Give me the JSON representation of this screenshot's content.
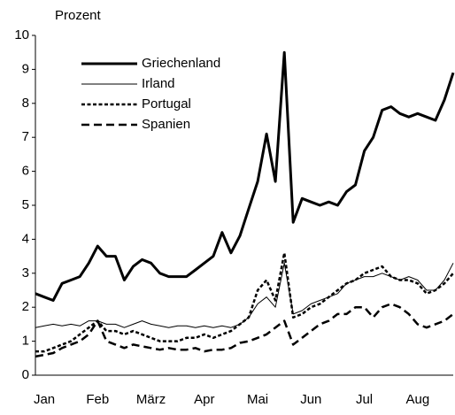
{
  "chart_data": {
    "type": "line",
    "y_label": "Prozent",
    "categories": [
      null,
      "Jan",
      null,
      null,
      null,
      null,
      null,
      "Feb",
      null,
      null,
      null,
      null,
      null,
      "März",
      null,
      null,
      null,
      null,
      null,
      "Apr",
      null,
      null,
      null,
      null,
      null,
      "Mai",
      null,
      null,
      null,
      null,
      null,
      "Jun",
      null,
      null,
      null,
      null,
      null,
      "Jul",
      null,
      null,
      null,
      null,
      null,
      "Aug",
      null,
      null,
      null,
      null
    ],
    "series": [
      {
        "name": "Griechenland",
        "color": "#000000",
        "line_width": 3,
        "dash": "none",
        "values": [
          2.4,
          2.3,
          2.2,
          2.7,
          2.8,
          2.9,
          3.3,
          3.8,
          3.5,
          3.5,
          2.8,
          3.2,
          3.4,
          3.3,
          3.0,
          2.9,
          2.9,
          2.9,
          3.1,
          3.3,
          3.5,
          4.2,
          3.6,
          4.1,
          4.9,
          5.7,
          7.1,
          5.7,
          9.5,
          4.5,
          5.2,
          5.1,
          5.0,
          5.1,
          5.0,
          5.4,
          5.6,
          6.6,
          7.0,
          7.8,
          7.9,
          7.7,
          7.6,
          7.7,
          7.6,
          7.5,
          8.1,
          8.9
        ]
      },
      {
        "name": "Irland",
        "color": "#000000",
        "line_width": 1,
        "dash": "none",
        "values": [
          1.4,
          1.45,
          1.5,
          1.45,
          1.5,
          1.45,
          1.6,
          1.6,
          1.5,
          1.5,
          1.4,
          1.5,
          1.6,
          1.5,
          1.45,
          1.4,
          1.45,
          1.45,
          1.4,
          1.45,
          1.4,
          1.45,
          1.4,
          1.5,
          1.7,
          2.1,
          2.3,
          2.0,
          3.3,
          1.8,
          1.9,
          2.1,
          2.2,
          2.3,
          2.4,
          2.7,
          2.8,
          2.9,
          2.9,
          3.0,
          2.9,
          2.8,
          2.9,
          2.8,
          2.5,
          2.5,
          2.8,
          3.3
        ]
      },
      {
        "name": "Portugal",
        "color": "#000000",
        "line_width": 2.5,
        "dash": "4,2.5",
        "values": [
          0.7,
          0.7,
          0.8,
          0.9,
          1.0,
          1.2,
          1.4,
          1.6,
          1.3,
          1.3,
          1.2,
          1.3,
          1.2,
          1.1,
          1.0,
          1.0,
          1.0,
          1.1,
          1.1,
          1.2,
          1.1,
          1.2,
          1.3,
          1.5,
          1.7,
          2.5,
          2.8,
          2.2,
          3.6,
          1.7,
          1.8,
          2.0,
          2.1,
          2.3,
          2.5,
          2.7,
          2.8,
          3.0,
          3.1,
          3.2,
          2.9,
          2.8,
          2.8,
          2.7,
          2.4,
          2.5,
          2.7,
          3.0
        ]
      },
      {
        "name": "Spanien",
        "color": "#000000",
        "line_width": 2.5,
        "dash": "9,5",
        "values": [
          0.55,
          0.6,
          0.65,
          0.8,
          0.9,
          1.0,
          1.2,
          1.6,
          1.0,
          0.9,
          0.8,
          0.9,
          0.85,
          0.8,
          0.75,
          0.8,
          0.75,
          0.75,
          0.8,
          0.7,
          0.75,
          0.75,
          0.8,
          0.95,
          1.0,
          1.1,
          1.2,
          1.4,
          1.6,
          0.9,
          1.1,
          1.3,
          1.5,
          1.6,
          1.8,
          1.8,
          2.0,
          2.0,
          1.7,
          2.0,
          2.1,
          2.0,
          1.8,
          1.5,
          1.4,
          1.5,
          1.6,
          1.8
        ]
      }
    ],
    "ylim": [
      0,
      10
    ],
    "yticks": [
      0,
      1,
      2,
      3,
      4,
      5,
      6,
      7,
      8,
      9,
      10
    ],
    "grid": false,
    "legend": "upper left"
  }
}
